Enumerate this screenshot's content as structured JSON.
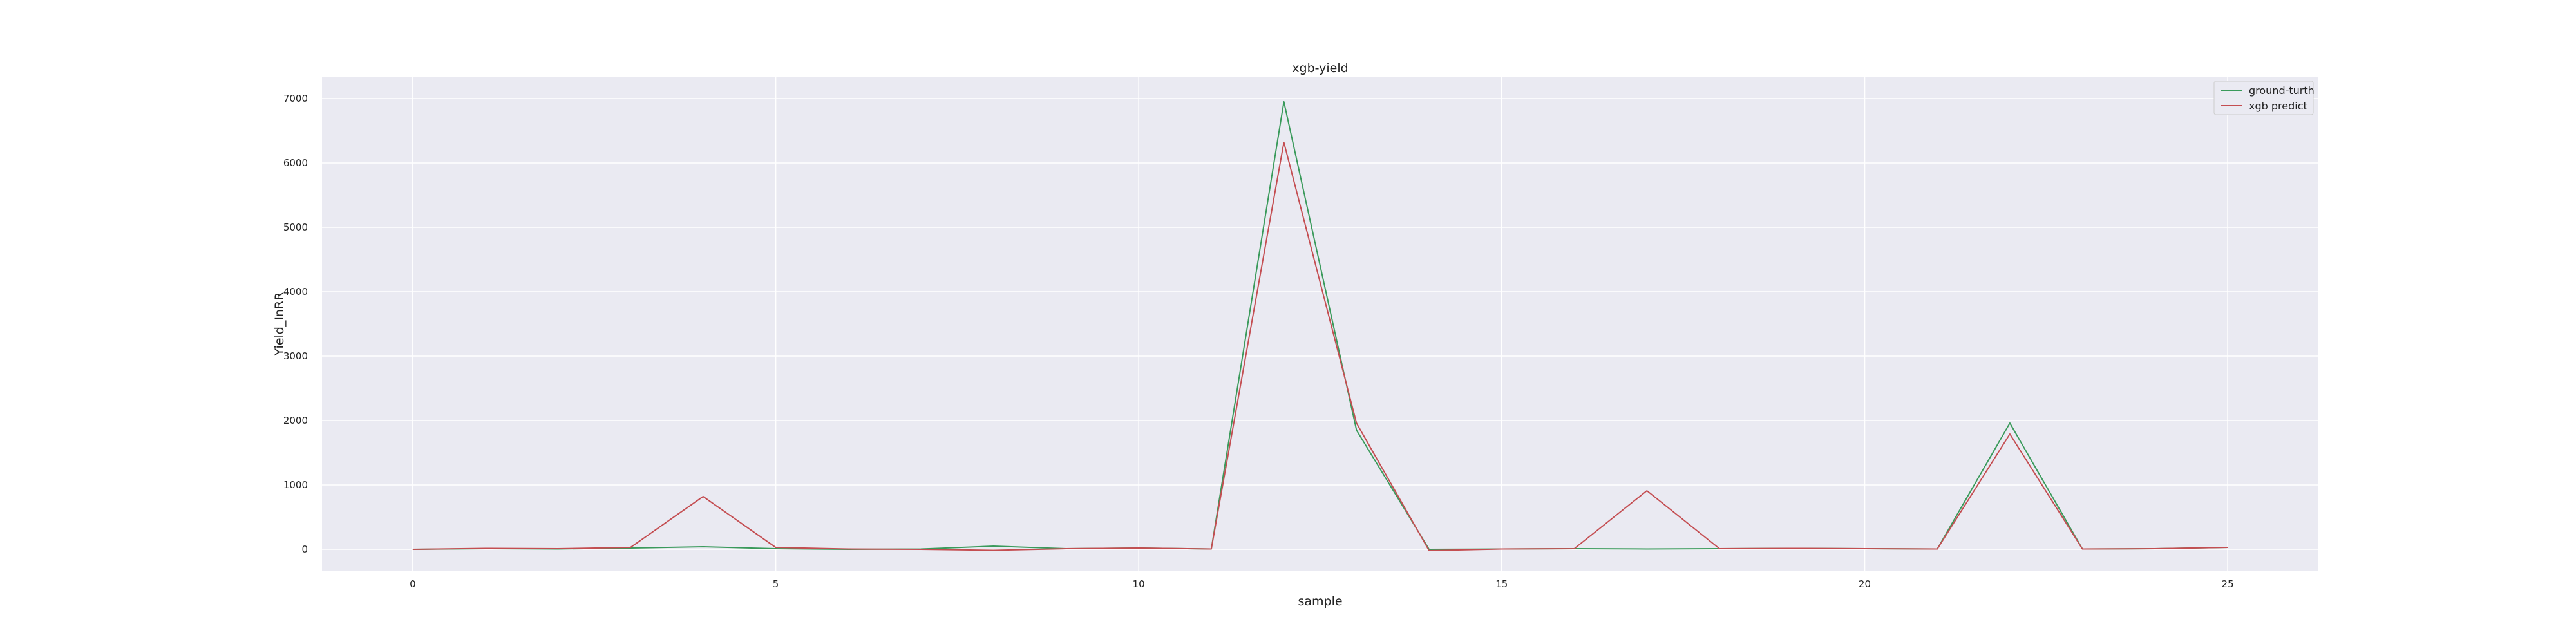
{
  "chart_data": {
    "type": "line",
    "title": "xgb-yield",
    "xlabel": "sample",
    "ylabel": "Yield_InRR",
    "xlim": [
      -1.25,
      26.25
    ],
    "ylim": [
      -330,
      7330
    ],
    "xticks": [
      0,
      5,
      10,
      15,
      20,
      25
    ],
    "yticks": [
      0,
      1000,
      2000,
      3000,
      4000,
      5000,
      6000,
      7000
    ],
    "grid": true,
    "legend_position": "top-right",
    "x": [
      0,
      1,
      2,
      3,
      4,
      5,
      6,
      7,
      8,
      9,
      10,
      11,
      12,
      13,
      14,
      15,
      16,
      17,
      18,
      19,
      20,
      21,
      22,
      23,
      24,
      25
    ],
    "series": [
      {
        "name": "ground-turth",
        "color": "#3a9a5b",
        "values": [
          0,
          10,
          5,
          20,
          40,
          10,
          0,
          5,
          50,
          10,
          20,
          5,
          6950,
          1850,
          0,
          5,
          10,
          5,
          10,
          15,
          10,
          5,
          1960,
          5,
          10,
          30
        ]
      },
      {
        "name": "xgb predict",
        "color": "#c44e52",
        "values": [
          0,
          15,
          10,
          30,
          820,
          30,
          5,
          0,
          -15,
          10,
          20,
          5,
          6320,
          1960,
          -20,
          5,
          10,
          910,
          10,
          15,
          10,
          5,
          1790,
          5,
          10,
          30
        ]
      }
    ]
  }
}
